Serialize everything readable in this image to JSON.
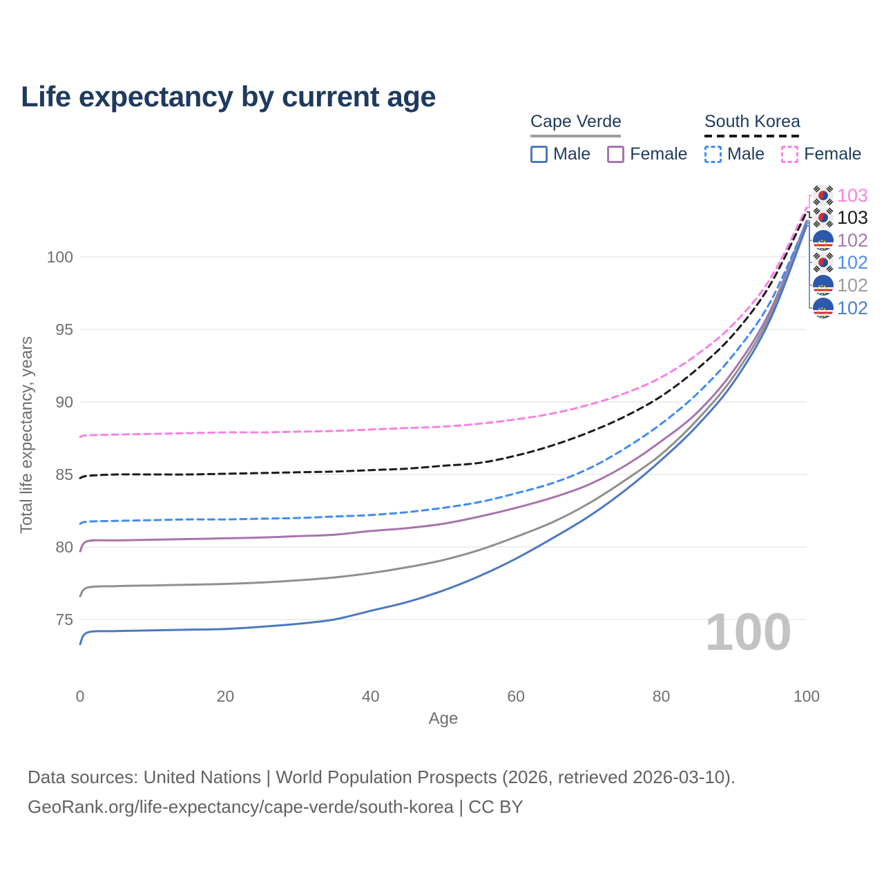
{
  "title": "Life expectancy by current age",
  "watermark": "100",
  "legend": {
    "groups": [
      {
        "label": "Cape Verde",
        "line_style": "solid",
        "underline_color": "#9e9e9e",
        "items": [
          {
            "label": "Male",
            "color": "#4a79c2"
          },
          {
            "label": "Female",
            "color": "#a873ae"
          }
        ]
      },
      {
        "label": "South Korea",
        "line_style": "dashed",
        "underline_color": "#1a1a1a",
        "items": [
          {
            "label": "Male",
            "color": "#3f8cf4"
          },
          {
            "label": "Female",
            "color": "#f980e2"
          }
        ]
      }
    ]
  },
  "chart_data": {
    "type": "line",
    "title": "Life expectancy by current age",
    "xlabel": "Age",
    "ylabel": "Total life expectancy, years",
    "x_ticks": [
      0,
      20,
      40,
      60,
      80,
      100
    ],
    "y_ticks": [
      75,
      80,
      85,
      90,
      95,
      100
    ],
    "xlim": [
      0,
      100
    ],
    "ylim": [
      73,
      104
    ],
    "grid": "horizontal",
    "legend_position": "top-right",
    "x": [
      0,
      1,
      5,
      10,
      15,
      20,
      25,
      30,
      35,
      40,
      45,
      50,
      55,
      60,
      65,
      70,
      75,
      80,
      85,
      90,
      95,
      100
    ],
    "series": [
      {
        "name": "South Korea Female",
        "country": "South Korea",
        "sex": "Female",
        "color": "#f980e2",
        "dash": true,
        "flag": "kr",
        "end_label": "103",
        "label_color": "#f980e2",
        "values": [
          87.6,
          87.7,
          87.75,
          87.8,
          87.85,
          87.9,
          87.9,
          87.95,
          88.0,
          88.1,
          88.2,
          88.3,
          88.5,
          88.8,
          89.2,
          89.8,
          90.6,
          91.7,
          93.3,
          95.4,
          98.5,
          103.4
        ]
      },
      {
        "name": "South Korea",
        "country": "South Korea",
        "sex": "Total",
        "color": "#1b1b1b",
        "dash": true,
        "flag": "kr",
        "end_label": "103",
        "label_color": "#1b1b1b",
        "values": [
          84.75,
          84.9,
          85.0,
          85.0,
          85.0,
          85.05,
          85.1,
          85.15,
          85.2,
          85.3,
          85.4,
          85.6,
          85.8,
          86.3,
          87.0,
          87.9,
          89.0,
          90.4,
          92.3,
          94.7,
          98.1,
          103.1
        ]
      },
      {
        "name": "Cape Verde Female",
        "country": "Cape Verde",
        "sex": "Female",
        "color": "#a873ae",
        "dash": false,
        "flag": "cv",
        "end_label": "102",
        "label_color": "#a877ab",
        "values": [
          79.7,
          80.4,
          80.45,
          80.5,
          80.55,
          80.6,
          80.65,
          80.75,
          80.85,
          81.1,
          81.3,
          81.6,
          82.1,
          82.7,
          83.4,
          84.3,
          85.6,
          87.3,
          89.3,
          92.2,
          96.3,
          102.5
        ]
      },
      {
        "name": "South Korea Male",
        "country": "South Korea",
        "sex": "Male",
        "color": "#3f8cf4",
        "dash": true,
        "flag": "kr",
        "end_label": "102",
        "label_color": "#4b8ef2",
        "values": [
          81.6,
          81.75,
          81.8,
          81.85,
          81.9,
          81.9,
          81.95,
          82.0,
          82.1,
          82.2,
          82.4,
          82.7,
          83.1,
          83.7,
          84.4,
          85.4,
          86.8,
          88.5,
          90.6,
          93.3,
          96.9,
          102.4
        ]
      },
      {
        "name": "Cape Verde",
        "country": "Cape Verde",
        "sex": "Total",
        "color": "#8f8f8f",
        "dash": false,
        "flag": "cv",
        "end_label": "102",
        "label_color": "#9c9c9c",
        "values": [
          76.6,
          77.2,
          77.3,
          77.35,
          77.4,
          77.45,
          77.55,
          77.7,
          77.9,
          78.2,
          78.6,
          79.1,
          79.8,
          80.7,
          81.7,
          83.0,
          84.6,
          86.4,
          88.8,
          91.8,
          96.0,
          102.3
        ]
      },
      {
        "name": "Cape Verde Male",
        "country": "Cape Verde",
        "sex": "Male",
        "color": "#4a79c2",
        "dash": false,
        "flag": "cv",
        "end_label": "102",
        "label_color": "#4d7fc4",
        "values": [
          73.3,
          74.1,
          74.2,
          74.25,
          74.3,
          74.35,
          74.5,
          74.7,
          75.0,
          75.6,
          76.2,
          77.0,
          78.0,
          79.2,
          80.6,
          82.1,
          83.9,
          86.0,
          88.4,
          91.4,
          95.7,
          102.15
        ]
      }
    ]
  },
  "footer": {
    "line1": "Data sources: United Nations | World Population Prospects (2026, retrieved 2026-03-10).",
    "line2": "GeoRank.org/life-expectancy/cape-verde/south-korea | CC BY"
  }
}
